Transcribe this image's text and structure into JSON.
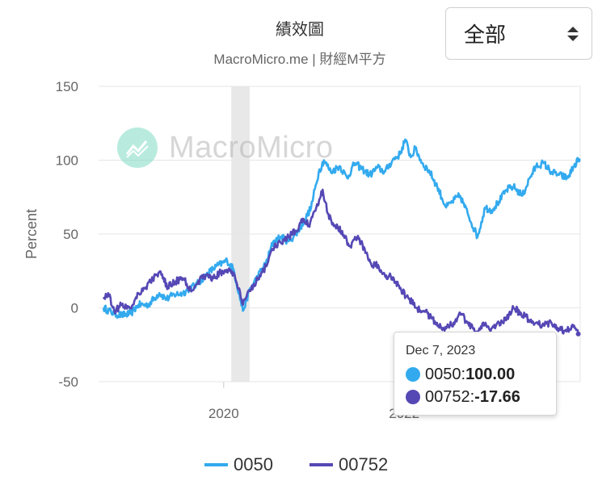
{
  "range_select": {
    "value": "全部"
  },
  "watermark": {
    "text": "MacroMicro"
  },
  "colors": {
    "s0050": "#33aaee",
    "s00752": "#5548b5",
    "band": "#e8e8e8"
  },
  "chart_data": {
    "type": "line",
    "title": "績效圖",
    "subtitle": "MacroMicro.me | 財經M平方",
    "ylabel": "Percent",
    "xlabel": "",
    "ylim": [
      -50,
      150
    ],
    "yticks": [
      "150",
      "100",
      "50",
      "0",
      "-50"
    ],
    "xticks": [
      "2020",
      "2022"
    ],
    "x_range": [
      "2018-09-01",
      "2023-12-15"
    ],
    "shaded_period": [
      "2020-02-01",
      "2020-04-15"
    ],
    "grid": true,
    "legend": "bottom-center",
    "series": [
      {
        "name": "0050",
        "points": [
          [
            "2018-09-01",
            0
          ],
          [
            "2018-10-15",
            -4
          ],
          [
            "2018-11-15",
            -5
          ],
          [
            "2018-12-20",
            -4
          ],
          [
            "2019-01-20",
            2
          ],
          [
            "2019-03-01",
            2
          ],
          [
            "2019-04-15",
            10
          ],
          [
            "2019-05-15",
            6
          ],
          [
            "2019-06-15",
            9
          ],
          [
            "2019-07-20",
            10
          ],
          [
            "2019-08-15",
            13
          ],
          [
            "2019-09-15",
            16
          ],
          [
            "2019-10-20",
            22
          ],
          [
            "2019-12-01",
            28
          ],
          [
            "2020-01-15",
            32
          ],
          [
            "2020-02-10",
            26
          ],
          [
            "2020-03-19",
            -2
          ],
          [
            "2020-04-15",
            12
          ],
          [
            "2020-05-20",
            22
          ],
          [
            "2020-06-20",
            30
          ],
          [
            "2020-07-20",
            45
          ],
          [
            "2020-08-20",
            48
          ],
          [
            "2020-09-20",
            45
          ],
          [
            "2020-10-20",
            50
          ],
          [
            "2020-11-20",
            58
          ],
          [
            "2020-12-20",
            68
          ],
          [
            "2021-01-20",
            92
          ],
          [
            "2021-02-10",
            100
          ],
          [
            "2021-03-10",
            92
          ],
          [
            "2021-04-15",
            96
          ],
          [
            "2021-05-15",
            88
          ],
          [
            "2021-06-15",
            98
          ],
          [
            "2021-07-15",
            94
          ],
          [
            "2021-08-15",
            90
          ],
          [
            "2021-09-15",
            95
          ],
          [
            "2021-10-15",
            92
          ],
          [
            "2021-11-15",
            100
          ],
          [
            "2021-12-15",
            104
          ],
          [
            "2022-01-05",
            114
          ],
          [
            "2022-01-28",
            102
          ],
          [
            "2022-02-15",
            108
          ],
          [
            "2022-03-15",
            98
          ],
          [
            "2022-04-15",
            92
          ],
          [
            "2022-05-15",
            82
          ],
          [
            "2022-06-20",
            68
          ],
          [
            "2022-07-15",
            72
          ],
          [
            "2022-08-15",
            76
          ],
          [
            "2022-09-15",
            64
          ],
          [
            "2022-10-25",
            48
          ],
          [
            "2022-11-25",
            68
          ],
          [
            "2022-12-20",
            66
          ],
          [
            "2023-01-20",
            72
          ],
          [
            "2023-02-20",
            80
          ],
          [
            "2023-03-20",
            82
          ],
          [
            "2023-04-25",
            76
          ],
          [
            "2023-05-25",
            88
          ],
          [
            "2023-06-20",
            96
          ],
          [
            "2023-07-20",
            98
          ],
          [
            "2023-08-20",
            92
          ],
          [
            "2023-09-20",
            90
          ],
          [
            "2023-10-25",
            88
          ],
          [
            "2023-11-20",
            96
          ],
          [
            "2023-12-07",
            100
          ]
        ]
      },
      {
        "name": "00752",
        "points": [
          [
            "2018-09-01",
            6
          ],
          [
            "2018-09-20",
            10
          ],
          [
            "2018-10-15",
            -2
          ],
          [
            "2018-11-15",
            2
          ],
          [
            "2018-12-20",
            0
          ],
          [
            "2019-01-20",
            10
          ],
          [
            "2019-02-20",
            14
          ],
          [
            "2019-03-20",
            20
          ],
          [
            "2019-04-15",
            24
          ],
          [
            "2019-05-20",
            14
          ],
          [
            "2019-06-20",
            18
          ],
          [
            "2019-07-20",
            20
          ],
          [
            "2019-08-20",
            12
          ],
          [
            "2019-09-20",
            18
          ],
          [
            "2019-10-20",
            22
          ],
          [
            "2019-11-20",
            20
          ],
          [
            "2019-12-20",
            24
          ],
          [
            "2020-01-20",
            26
          ],
          [
            "2020-02-15",
            22
          ],
          [
            "2020-03-19",
            2
          ],
          [
            "2020-04-15",
            12
          ],
          [
            "2020-05-20",
            20
          ],
          [
            "2020-06-20",
            28
          ],
          [
            "2020-07-15",
            40
          ],
          [
            "2020-08-20",
            44
          ],
          [
            "2020-09-20",
            48
          ],
          [
            "2020-10-20",
            52
          ],
          [
            "2020-11-20",
            60
          ],
          [
            "2020-12-10",
            56
          ],
          [
            "2021-01-10",
            68
          ],
          [
            "2021-02-05",
            80
          ],
          [
            "2021-02-25",
            64
          ],
          [
            "2021-03-25",
            56
          ],
          [
            "2021-04-25",
            52
          ],
          [
            "2021-05-25",
            42
          ],
          [
            "2021-06-25",
            48
          ],
          [
            "2021-07-25",
            40
          ],
          [
            "2021-08-20",
            30
          ],
          [
            "2021-09-20",
            28
          ],
          [
            "2021-10-20",
            22
          ],
          [
            "2021-11-20",
            20
          ],
          [
            "2021-12-20",
            12
          ],
          [
            "2022-01-20",
            6
          ],
          [
            "2022-02-20",
            0
          ],
          [
            "2022-03-20",
            -2
          ],
          [
            "2022-04-20",
            -6
          ],
          [
            "2022-05-20",
            -12
          ],
          [
            "2022-06-20",
            -14
          ],
          [
            "2022-07-20",
            -10
          ],
          [
            "2022-08-20",
            -4
          ],
          [
            "2022-09-20",
            -12
          ],
          [
            "2022-10-20",
            -16
          ],
          [
            "2022-11-20",
            -12
          ],
          [
            "2022-12-20",
            -14
          ],
          [
            "2023-01-20",
            -10
          ],
          [
            "2023-02-20",
            -8
          ],
          [
            "2023-03-20",
            0
          ],
          [
            "2023-04-20",
            -4
          ],
          [
            "2023-05-20",
            -8
          ],
          [
            "2023-06-20",
            -10
          ],
          [
            "2023-07-20",
            -12
          ],
          [
            "2023-08-20",
            -10
          ],
          [
            "2023-09-20",
            -14
          ],
          [
            "2023-10-20",
            -16
          ],
          [
            "2023-11-20",
            -12
          ],
          [
            "2023-12-07",
            -17.66
          ]
        ]
      }
    ],
    "tooltip": {
      "date": "Dec 7, 2023",
      "rows": [
        {
          "label": "0050: ",
          "value": "100.00"
        },
        {
          "label": "00752: ",
          "value": "-17.66"
        }
      ]
    }
  }
}
